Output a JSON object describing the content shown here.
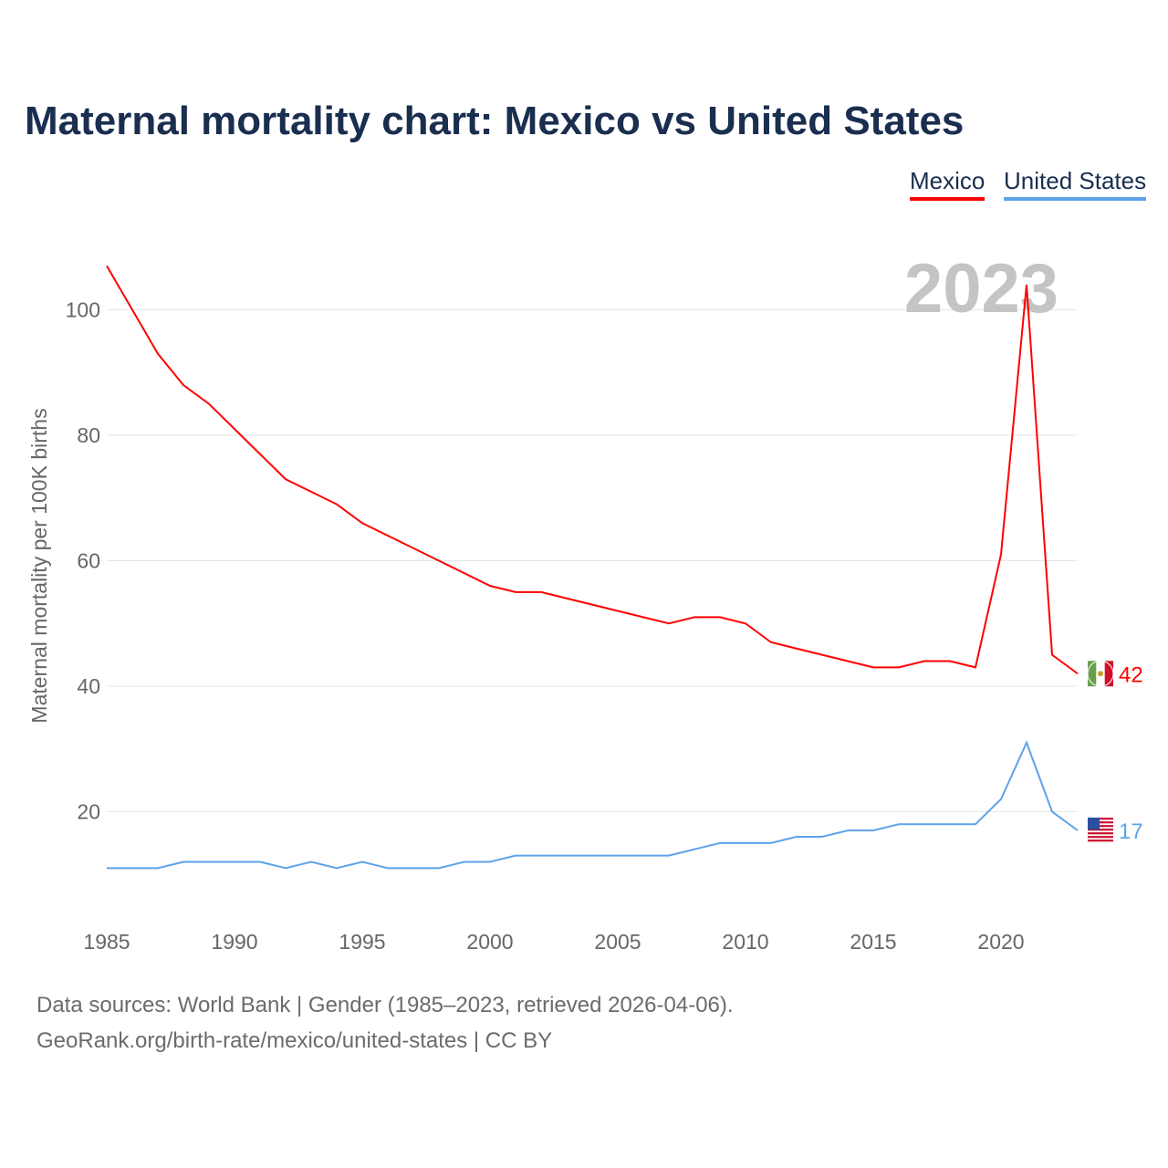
{
  "title": "Maternal mortality chart: Mexico vs United States",
  "legend": {
    "mexico": "Mexico",
    "united_states": "United States"
  },
  "year_watermark": "2023",
  "footer": {
    "line1": "Data sources: World Bank | Gender (1985–2023, retrieved 2026-04-06).",
    "line2": "GeoRank.org/birth-rate/mexico/united-states | CC BY"
  },
  "colors": {
    "mexico": "#ff0000",
    "united_states": "#5ea3ea",
    "title": "#1a2e4f"
  },
  "chart_data": {
    "type": "line",
    "title": "Maternal mortality chart: Mexico vs United States",
    "xlabel": "",
    "ylabel": "Maternal mortality per 100K births",
    "xlim": [
      1985,
      2023
    ],
    "ylim": [
      0,
      110
    ],
    "x_ticks": [
      "1985",
      "1990",
      "1995",
      "2000",
      "2005",
      "2010",
      "2015",
      "2020"
    ],
    "y_ticks": [
      "20",
      "40",
      "60",
      "80",
      "100"
    ],
    "grid": true,
    "legend_position": "top-right",
    "x": [
      1985,
      1986,
      1987,
      1988,
      1989,
      1990,
      1991,
      1992,
      1993,
      1994,
      1995,
      1996,
      1997,
      1998,
      1999,
      2000,
      2001,
      2002,
      2003,
      2004,
      2005,
      2006,
      2007,
      2008,
      2009,
      2010,
      2011,
      2012,
      2013,
      2014,
      2015,
      2016,
      2017,
      2018,
      2019,
      2020,
      2021,
      2022,
      2023
    ],
    "series": [
      {
        "name": "Mexico",
        "end_label": "42",
        "values": [
          107,
          100,
          93,
          88,
          85,
          81,
          77,
          73,
          71,
          69,
          66,
          64,
          62,
          60,
          58,
          56,
          55,
          55,
          54,
          53,
          52,
          51,
          50,
          51,
          51,
          50,
          47,
          46,
          45,
          44,
          43,
          43,
          44,
          44,
          43,
          61,
          104,
          45,
          42
        ]
      },
      {
        "name": "United States",
        "end_label": "17",
        "values": [
          11,
          11,
          11,
          12,
          12,
          12,
          12,
          11,
          12,
          11,
          12,
          11,
          11,
          11,
          12,
          12,
          13,
          13,
          13,
          13,
          13,
          13,
          13,
          14,
          15,
          15,
          15,
          16,
          16,
          17,
          17,
          18,
          18,
          18,
          18,
          22,
          31,
          20,
          17
        ]
      }
    ]
  }
}
